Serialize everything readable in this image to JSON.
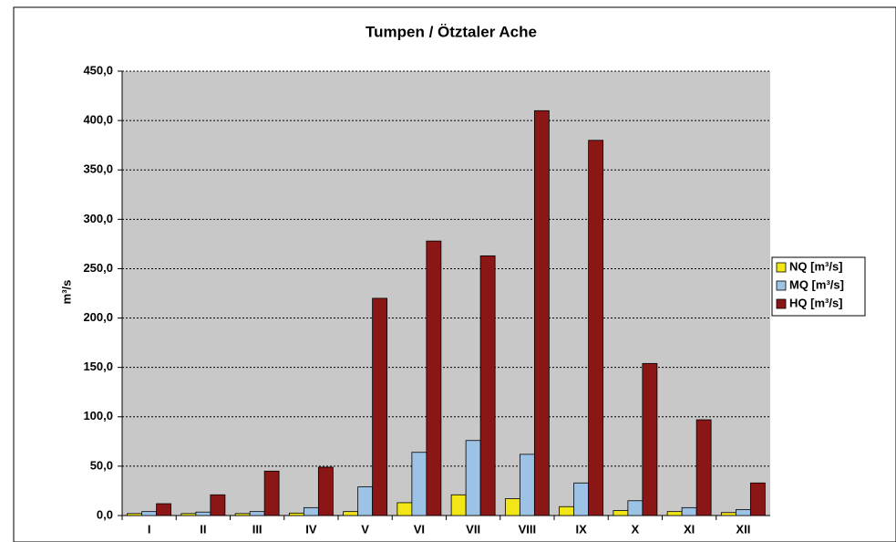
{
  "chart_data": {
    "type": "bar",
    "title": "Tumpen / Ötztaler Ache",
    "ylabel": "m³/s",
    "categories": [
      "I",
      "II",
      "III",
      "IV",
      "V",
      "VI",
      "VII",
      "VIII",
      "IX",
      "X",
      "XI",
      "XII"
    ],
    "series": [
      {
        "name": "NQ [m³/s]",
        "color": "#f2e616",
        "values": [
          2,
          2,
          2,
          2.5,
          4,
          13,
          21,
          17,
          9,
          5,
          4,
          3
        ]
      },
      {
        "name": "MQ [m³/s]",
        "color": "#9cc3e5",
        "values": [
          4,
          3.5,
          4,
          8,
          29,
          64,
          76,
          62,
          33,
          15,
          8,
          6
        ]
      },
      {
        "name": "HQ [m³/s]",
        "color": "#8b1616",
        "values": [
          12,
          21,
          45,
          49,
          220,
          278,
          263,
          410,
          380,
          154,
          97,
          33
        ]
      }
    ],
    "ylim": [
      0,
      450
    ],
    "yticks": [
      {
        "value": 0,
        "label": "0,0"
      },
      {
        "value": 50,
        "label": "50,0"
      },
      {
        "value": 100,
        "label": "100,0"
      },
      {
        "value": 150,
        "label": "150,0"
      },
      {
        "value": 200,
        "label": "200,0"
      },
      {
        "value": 250,
        "label": "250,0"
      },
      {
        "value": 300,
        "label": "300,0"
      },
      {
        "value": 350,
        "label": "350,0"
      },
      {
        "value": 400,
        "label": "400,0"
      },
      {
        "value": 450,
        "label": "450,0"
      }
    ],
    "grid": true,
    "legend": "right"
  }
}
